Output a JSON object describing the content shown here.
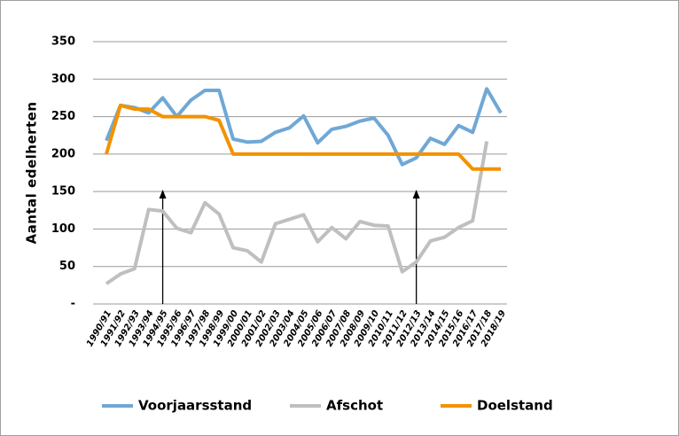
{
  "chart_data": {
    "type": "line",
    "y_label": "Aantal edelherten",
    "categories": [
      "1990/91",
      "1991/92",
      "1992/93",
      "1993/94",
      "1994/95",
      "1995/96",
      "1996/97",
      "1997/98",
      "1998/99",
      "1999/00",
      "2000/01",
      "2001/02",
      "2002/03",
      "2003/04",
      "2004/05",
      "2005/06",
      "2006/07",
      "2007/08",
      "2008/09",
      "2009/10",
      "2010/11",
      "2011/12",
      "2012/13",
      "2013/14",
      "2014/15",
      "2015/16",
      "2016/17",
      "2017/18",
      "2018/19"
    ],
    "series": [
      {
        "name": "Voorjaarsstand",
        "color": "#6fa8d6",
        "values": [
          218,
          265,
          262,
          255,
          275,
          250,
          272,
          285,
          285,
          220,
          216,
          217,
          229,
          235,
          251,
          215,
          233,
          237,
          244,
          248,
          225,
          186,
          195,
          221,
          213,
          238,
          229,
          287,
          255
        ]
      },
      {
        "name": "Afschot",
        "color": "#bfbfbf",
        "values": [
          27,
          40,
          47,
          126,
          124,
          101,
          95,
          135,
          120,
          75,
          71,
          56,
          107,
          113,
          119,
          83,
          102,
          87,
          110,
          105,
          104,
          43,
          56,
          84,
          89,
          102,
          111,
          217,
          null
        ]
      },
      {
        "name": "Doelstand",
        "color": "#f39200",
        "values": [
          200,
          265,
          260,
          260,
          250,
          250,
          250,
          250,
          245,
          200,
          200,
          200,
          200,
          200,
          200,
          200,
          200,
          200,
          200,
          200,
          200,
          200,
          200,
          200,
          200,
          200,
          180,
          180,
          180
        ]
      }
    ],
    "ylim": [
      0,
      350
    ],
    "yticks": [
      {
        "value": 0,
        "label": "-"
      },
      50,
      100,
      150,
      200,
      250,
      300,
      350
    ],
    "grid": true,
    "legend": "bottom"
  }
}
